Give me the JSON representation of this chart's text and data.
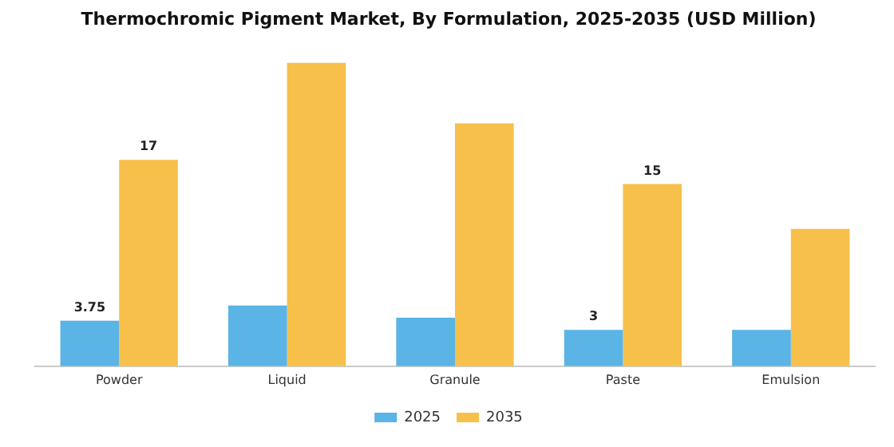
{
  "chart_data": {
    "type": "bar",
    "title": "Thermochromic Pigment Market, By Formulation, 2025-2035 (USD Million)",
    "categories": [
      "Powder",
      "Liquid",
      "Granule",
      "Paste",
      "Emulsion"
    ],
    "series": [
      {
        "name": "2025",
        "color": "#5ab4e5",
        "values": [
          3.75,
          5,
          4,
          3,
          3
        ],
        "value_labels": [
          "3.75",
          null,
          null,
          "3",
          null
        ]
      },
      {
        "name": "2035",
        "color": "#f7c04a",
        "values": [
          17,
          25,
          20,
          15,
          11.3
        ],
        "value_labels": [
          "17",
          null,
          null,
          "15",
          null
        ]
      }
    ],
    "tick_labels": "x",
    "grid": false,
    "legend": "bottom"
  }
}
